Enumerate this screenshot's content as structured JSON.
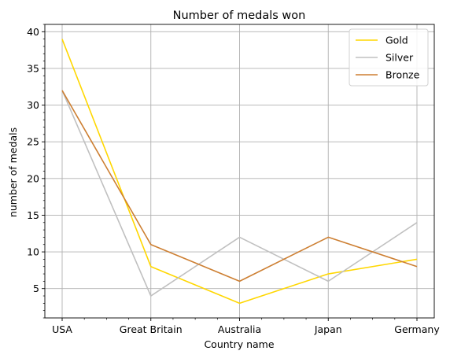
{
  "chart_data": {
    "type": "line",
    "title": "Number of medals won",
    "xlabel": "Country name",
    "ylabel": "number of medals",
    "categories": [
      "USA",
      "Great Britain",
      "Australia",
      "Japan",
      "Germany"
    ],
    "series": [
      {
        "name": "Gold",
        "color": "#FFD700",
        "values": [
          39,
          8,
          3,
          7,
          9
        ]
      },
      {
        "name": "Silver",
        "color": "#C0C0C0",
        "values": [
          32,
          4,
          12,
          6,
          14
        ]
      },
      {
        "name": "Bronze",
        "color": "#CD7F32",
        "values": [
          32,
          11,
          6,
          12,
          8
        ]
      }
    ],
    "ylim": [
      1,
      41
    ],
    "yticks": [
      5,
      10,
      15,
      20,
      25,
      30,
      35,
      40
    ],
    "grid": true,
    "legend": "upper right"
  }
}
